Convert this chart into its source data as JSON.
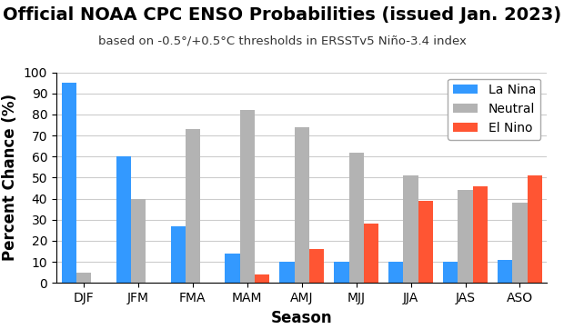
{
  "title": "Official NOAA CPC ENSO Probabilities (issued Jan. 2023)",
  "subtitle": "based on -0.5°/+0.5°C thresholds in ERSSTv5 Niño-3.4 index",
  "xlabel": "Season",
  "ylabel": "Percent Chance (%)",
  "categories": [
    "DJF",
    "JFM",
    "FMA",
    "MAM",
    "AMJ",
    "MJJ",
    "JJA",
    "JAS",
    "ASO"
  ],
  "la_nina": [
    95,
    60,
    27,
    14,
    10,
    10,
    10,
    10,
    11
  ],
  "neutral": [
    5,
    40,
    73,
    82,
    74,
    62,
    51,
    44,
    38
  ],
  "el_nino": [
    0,
    0,
    0,
    4,
    16,
    28,
    39,
    46,
    51
  ],
  "la_nina_color": "#3399ff",
  "neutral_color": "#b3b3b3",
  "el_nino_color": "#ff5533",
  "ylim": [
    0,
    100
  ],
  "yticks": [
    0,
    10,
    20,
    30,
    40,
    50,
    60,
    70,
    80,
    90,
    100
  ],
  "bar_width": 0.27,
  "title_fontsize": 14,
  "subtitle_fontsize": 9.5,
  "axis_label_fontsize": 12,
  "tick_fontsize": 10,
  "legend_fontsize": 10,
  "background_color": "#ffffff",
  "grid_color": "#cccccc"
}
